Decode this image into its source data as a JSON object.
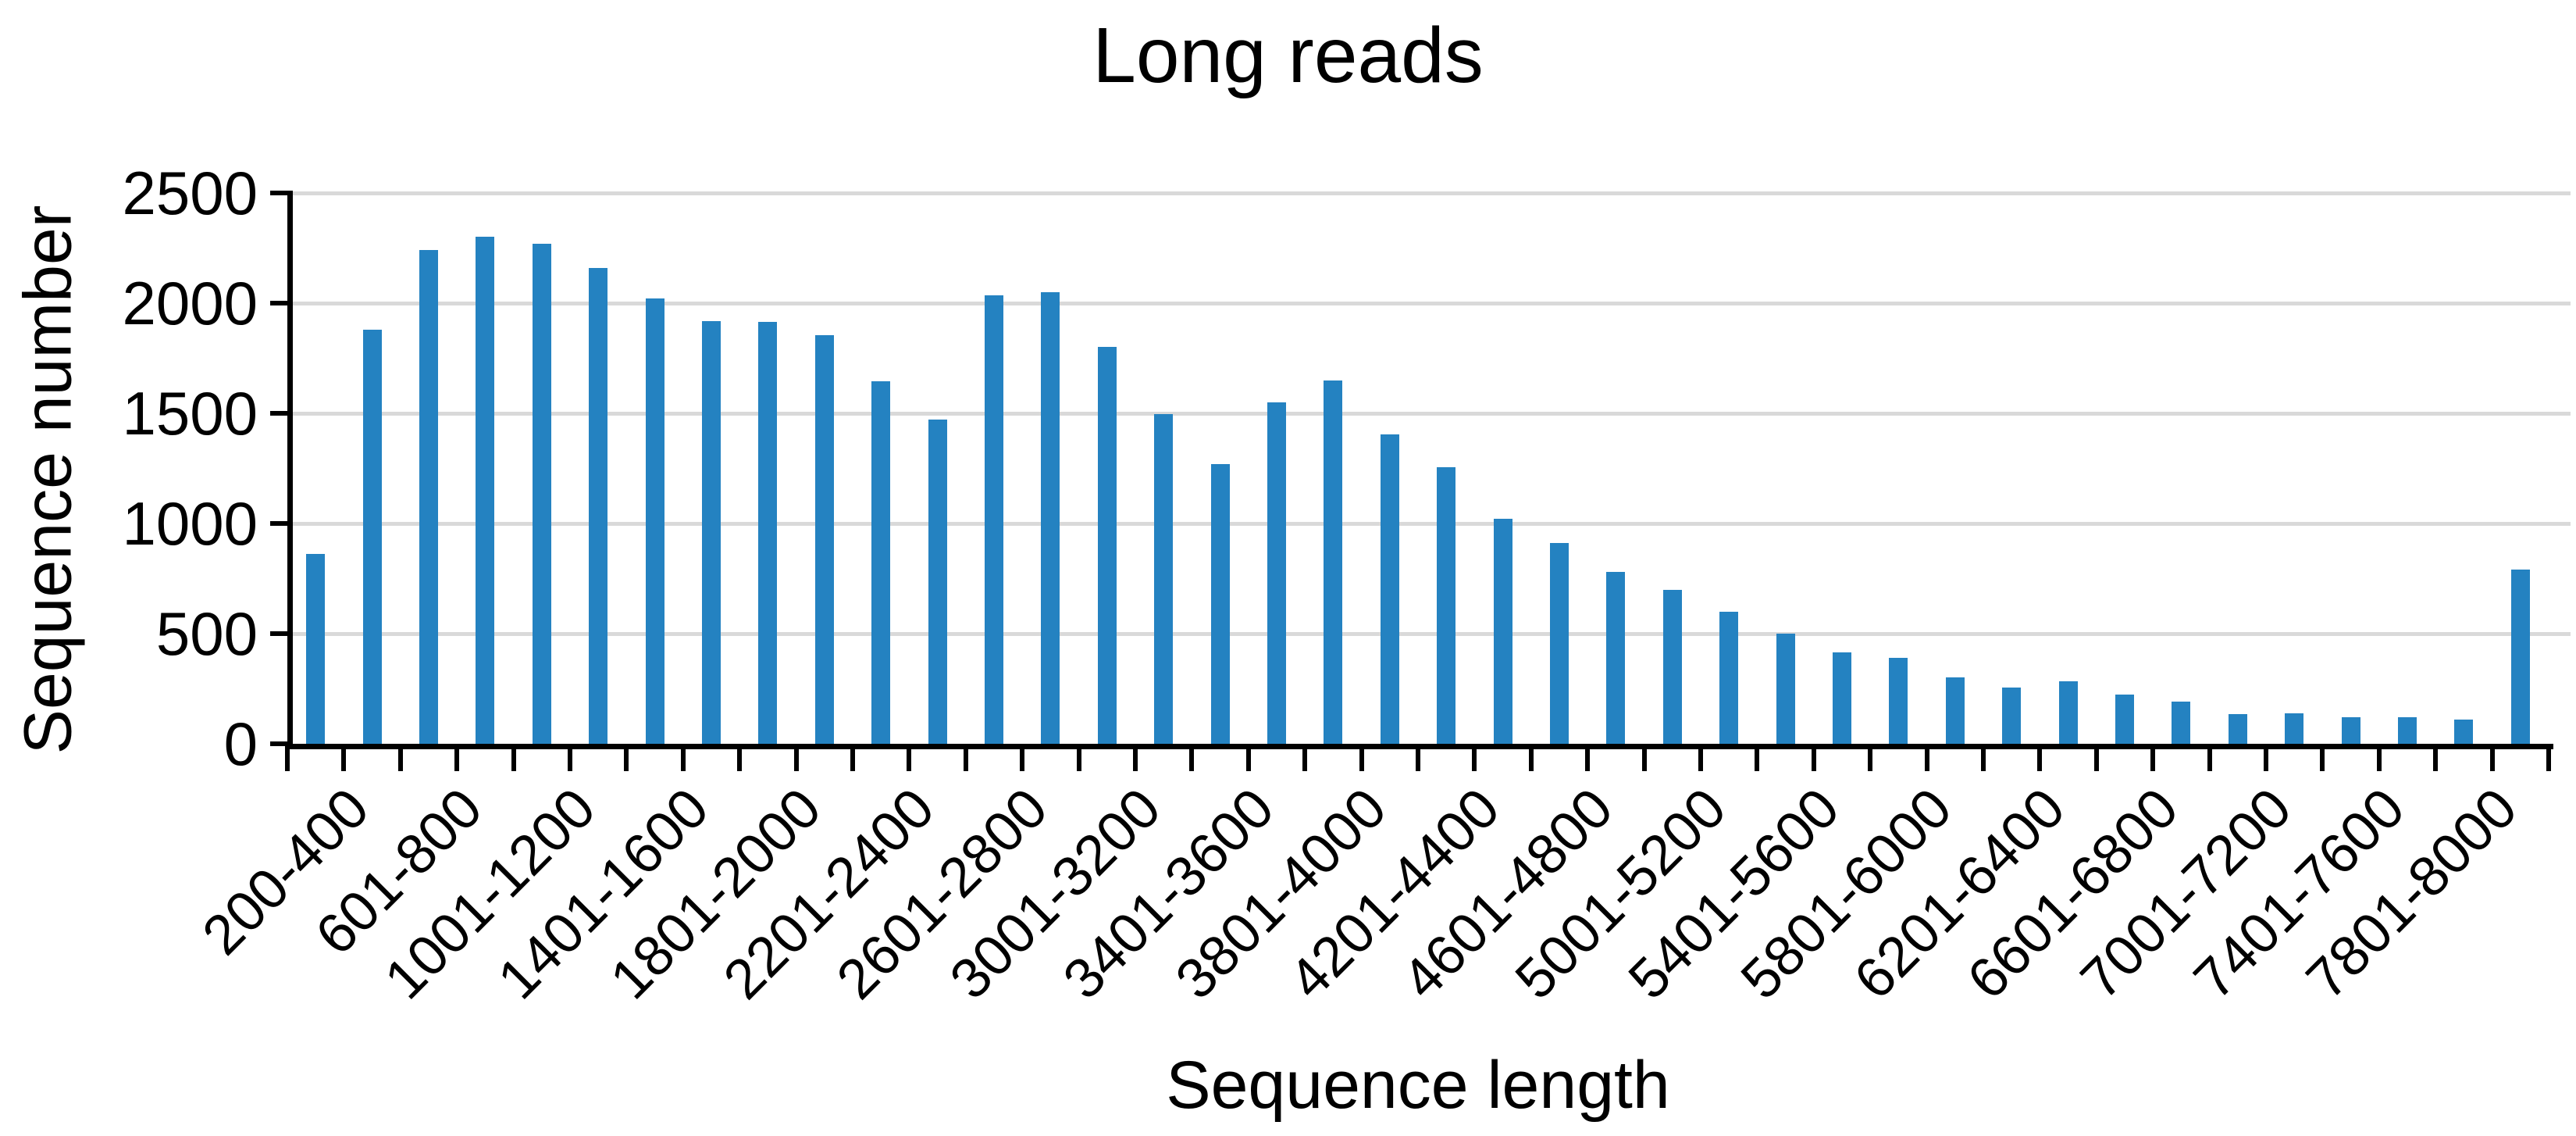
{
  "chart_data": {
    "type": "bar",
    "title": "Long reads",
    "xlabel": "Sequence length",
    "ylabel": "Sequence number",
    "ylim": [
      0,
      2500
    ],
    "yticks": [
      0,
      500,
      1000,
      1500,
      2000,
      2500
    ],
    "ytick_labels": [
      "0",
      "500",
      "1000",
      "1500",
      "2000",
      "2500"
    ],
    "grid": "horizontal",
    "legend": "none",
    "categories": [
      "200-400",
      "",
      "601-800",
      "",
      "1001-1200",
      "",
      "1401-1600",
      "",
      "1801-2000",
      "",
      "2201-2400",
      "",
      "2601-2800",
      "",
      "3001-3200",
      "",
      "3401-3600",
      "",
      "3801-4000",
      "",
      "4201-4400",
      "",
      "4601-4800",
      "",
      "5001-5200",
      "",
      "5401-5600",
      "",
      "5801-6000",
      "",
      "6201-6400",
      "",
      "6601-6800",
      "",
      "7001-7200",
      "",
      "7401-7600",
      "",
      "7801-8000",
      ""
    ],
    "values": [
      860,
      1880,
      2240,
      2300,
      2270,
      2160,
      2020,
      1920,
      1915,
      1855,
      1645,
      1470,
      2035,
      2050,
      1800,
      1495,
      1270,
      1550,
      1650,
      1405,
      1255,
      1020,
      910,
      780,
      700,
      600,
      500,
      415,
      390,
      300,
      255,
      285,
      225,
      190,
      135,
      140,
      120,
      120,
      110,
      790
    ]
  },
  "colors": {
    "bar": "#2482C1",
    "gridline": "#D9D9D9",
    "axis": "#000000",
    "text": "#000000",
    "background": "#FFFFFF"
  }
}
